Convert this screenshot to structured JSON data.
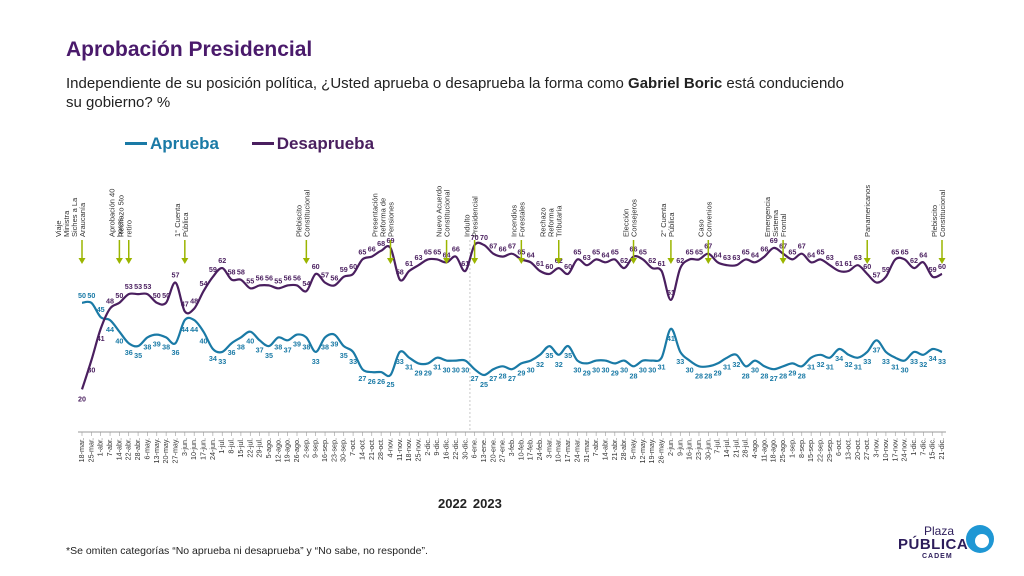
{
  "header": {
    "title": "Aprobación Presidencial",
    "subtitle_a": "Independiente de su posición política, ¿Usted aprueba o desaprueba la forma como ",
    "subtitle_b": "Gabriel Boric",
    "subtitle_c": " está conduciendo su gobierno? %"
  },
  "footnote": "*Se omiten categorías “No aprueba ni desaprueba” y “No sabe, no responde”.",
  "logo": {
    "line1": "Plaza",
    "line2": "PÚBLICA",
    "line3": "CADEM"
  },
  "colors": {
    "aprueba": "#1a7aa6",
    "desaprueba": "#4a1f5f",
    "annotation": "#9bb500",
    "grid": "#dddddd"
  },
  "chart_data": {
    "type": "line",
    "title": "Aprobación Presidencial",
    "xlabel": "",
    "ylabel": "",
    "ylim": [
      15,
      80
    ],
    "grid": false,
    "legend": "top-left",
    "x": [
      "18-mar.",
      "25-mar.",
      "1-abr.",
      "7-abr.",
      "14-abr.",
      "22-abr.",
      "28-abr.",
      "6-may.",
      "13-may.",
      "20-may.",
      "27-may.",
      "3-jun.",
      "10-jun.",
      "17-jun.",
      "24-jun.",
      "1-jul.",
      "8-jul.",
      "15-jul.",
      "22-jul.",
      "29-jul.",
      "5-ago.",
      "12-ago.",
      "19-ago.",
      "26-ago.",
      "2-sep.",
      "9-sep.",
      "16-sep.",
      "23-sep.",
      "30-sep.",
      "7-oct.",
      "14-oct.",
      "21-oct.",
      "28-oct.",
      "4-nov.",
      "11-nov.",
      "18-nov.",
      "25-nov.",
      "2-dic.",
      "9-dic.",
      "16-dic.",
      "22-dic.",
      "30-dic.",
      "6-ene.",
      "13-ene.",
      "20-ene.",
      "27-ene.",
      "3-feb.",
      "10-feb.",
      "17-feb.",
      "24-feb.",
      "3-mar.",
      "10-mar.",
      "17-mar.",
      "24-mar.",
      "31-mar.",
      "7-abr.",
      "14-abr.",
      "21-abr.",
      "28-abr.",
      "5-may.",
      "12-may.",
      "19-may.",
      "26-may.",
      "2-jun.",
      "9-jun.",
      "16-jun.",
      "23-jun.",
      "30-jun.",
      "7-jul.",
      "14-jul.",
      "21-jul.",
      "28-jul.",
      "4-ago.",
      "11-ago.",
      "18-ago.",
      "25-ago.",
      "1-sep.",
      "8-sep.",
      "15-sep.",
      "22-sep.",
      "29-sep.",
      "6-oct.",
      "13-oct.",
      "20-oct.",
      "27-oct.",
      "3-nov.",
      "10-nov.",
      "17-nov.",
      "24-nov.",
      "1-dic.",
      "7-dic.",
      "15-dic.",
      "21-dic."
    ],
    "series": [
      {
        "name": "Aprueba",
        "values": [
          50,
          50,
          45,
          44,
          40,
          36,
          35,
          38,
          39,
          38,
          36,
          44,
          44,
          40,
          34,
          33,
          36,
          38,
          40,
          37,
          35,
          38,
          37,
          39,
          38,
          33,
          38,
          39,
          35,
          33,
          27,
          26,
          26,
          25,
          33,
          31,
          29,
          29,
          31,
          30,
          30,
          30,
          27,
          25,
          27,
          28,
          27,
          29,
          30,
          32,
          35,
          32,
          35,
          30,
          29,
          30,
          30,
          29,
          30,
          28,
          30,
          30,
          31,
          41,
          33,
          30,
          28,
          28,
          29,
          31,
          32,
          28,
          30,
          28,
          27,
          28,
          29,
          28,
          31,
          32,
          31,
          34,
          32,
          31,
          33,
          37,
          33,
          31,
          30,
          33,
          32,
          34,
          33
        ]
      },
      {
        "name": "Desaprueba",
        "values": [
          20,
          30,
          41,
          48,
          50,
          53,
          53,
          53,
          50,
          50,
          57,
          47,
          48,
          54,
          59,
          62,
          58,
          58,
          55,
          56,
          56,
          55,
          56,
          56,
          54,
          60,
          57,
          56,
          59,
          60,
          65,
          66,
          68,
          69,
          58,
          61,
          63,
          65,
          65,
          64,
          66,
          61,
          70,
          70,
          67,
          66,
          67,
          65,
          64,
          61,
          60,
          62,
          60,
          65,
          63,
          65,
          64,
          65,
          62,
          66,
          65,
          62,
          61,
          51,
          62,
          65,
          65,
          67,
          64,
          63,
          63,
          65,
          64,
          66,
          69,
          67,
          65,
          67,
          64,
          65,
          63,
          61,
          61,
          63,
          60,
          57,
          59,
          65,
          65,
          62,
          64,
          59,
          60
        ]
      }
    ],
    "year_labels": [
      "2022",
      "2023"
    ],
    "annotations": [
      {
        "label": "Viaje Ministra Siches a La Araucanía",
        "at": "18-mar."
      },
      {
        "label": "Rechazo 5to retiro",
        "at": "22-abr."
      },
      {
        "label": "1° Cuenta Pública",
        "at": "3-jun."
      },
      {
        "label": "Plebiscito Constitucional",
        "at": "2-sep."
      },
      {
        "label": "Presentación Reforma de Pensiones",
        "at": "4-nov."
      },
      {
        "label": "Nuevo Acuerdo Constitucional",
        "at": "16-dic."
      },
      {
        "label": "Indulto Presidencial",
        "at": "6-ene."
      },
      {
        "label": "Incendios Forestales",
        "at": "10-feb."
      },
      {
        "label": "Rechazo Reforma Tributaria",
        "at": "10-mar."
      },
      {
        "label": "Aprobación 40 horas",
        "at": "14-abr."
      },
      {
        "label": "Elección Consejeros",
        "at": "5-may."
      },
      {
        "label": "2° Cuenta Pública",
        "at": "2-jun."
      },
      {
        "label": "Caso Convenios",
        "at": "30-jun."
      },
      {
        "label": "Emergencia Sistema Frontal",
        "at": "25-ago."
      },
      {
        "label": "Panamericanos",
        "at": "27-oct."
      },
      {
        "label": "Plebiscito Constitucional",
        "at": "21-dic."
      }
    ]
  }
}
